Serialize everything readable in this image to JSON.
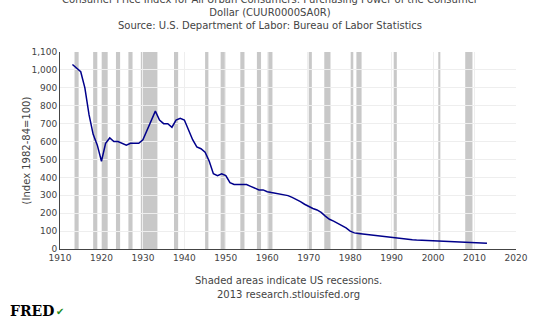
{
  "chart_data": {
    "type": "line",
    "title": [
      "Consumer Price Index for All Urban Consumers: Purchasing Power of the Consumer",
      "Dollar (CUUR0000SA0R)"
    ],
    "subtitle": "Source: U.S. Department of Labor: Bureau of Labor Statistics",
    "ylabel": "(Index 1982-84=100)",
    "annotations": [
      "Shaded areas indicate US recessions.",
      "2013 research.stlouisfed.org",
      "FRED",
      "✔"
    ],
    "color": "#00008b",
    "recession_color": "#c8c8c8",
    "recessions": [
      [
        1913.5,
        1914.5
      ],
      [
        1918.0,
        1919.0
      ],
      [
        1920.0,
        1921.5
      ],
      [
        1923.5,
        1924.5
      ],
      [
        1926.5,
        1927.5
      ],
      [
        1929.5,
        1933.5
      ],
      [
        1937.5,
        1938.5
      ],
      [
        1945.0,
        1945.8
      ],
      [
        1948.75,
        1949.75
      ],
      [
        1953.5,
        1954.5
      ],
      [
        1957.5,
        1958.5
      ],
      [
        1960.25,
        1961.25
      ],
      [
        1969.75,
        1970.75
      ],
      [
        1973.75,
        1975.25
      ],
      [
        1980.0,
        1980.75
      ],
      [
        1981.5,
        1982.75
      ],
      [
        1990.5,
        1991.25
      ],
      [
        2001.25,
        2001.75
      ],
      [
        2007.75,
        2009.5
      ]
    ],
    "x": [
      1913,
      1914,
      1915,
      1916,
      1917,
      1918,
      1919,
      1920,
      1921,
      1922,
      1923,
      1924,
      1925,
      1926,
      1927,
      1928,
      1929,
      1930,
      1931,
      1932,
      1933,
      1934,
      1935,
      1936,
      1937,
      1938,
      1939,
      1940,
      1941,
      1942,
      1943,
      1944,
      1945,
      1946,
      1947,
      1948,
      1949,
      1950,
      1951,
      1952,
      1953,
      1954,
      1955,
      1956,
      1957,
      1958,
      1959,
      1960,
      1961,
      1962,
      1963,
      1964,
      1965,
      1966,
      1967,
      1968,
      1969,
      1970,
      1971,
      1972,
      1973,
      1974,
      1975,
      1976,
      1977,
      1978,
      1979,
      1980,
      1981,
      1982,
      1983,
      1984,
      1985,
      1986,
      1987,
      1988,
      1989,
      1990,
      1991,
      1992,
      1993,
      1994,
      1995,
      1996,
      1997,
      1998,
      1999,
      2000,
      2001,
      2002,
      2003,
      2004,
      2005,
      2006,
      2007,
      2008,
      2009,
      2010,
      2011,
      2012,
      2013
    ],
    "values": [
      1030,
      1010,
      990,
      900,
      750,
      640,
      580,
      490,
      590,
      620,
      600,
      600,
      590,
      580,
      590,
      590,
      590,
      610,
      660,
      720,
      770,
      720,
      700,
      700,
      680,
      720,
      730,
      720,
      660,
      610,
      570,
      560,
      540,
      490,
      420,
      410,
      420,
      410,
      370,
      360,
      360,
      360,
      360,
      350,
      340,
      330,
      330,
      320,
      315,
      310,
      305,
      302,
      298,
      288,
      278,
      265,
      250,
      237,
      226,
      218,
      204,
      184,
      166,
      156,
      144,
      133,
      118,
      100,
      90,
      87,
      84,
      82,
      79,
      78,
      74,
      71,
      67,
      63,
      60,
      58,
      56,
      54,
      52,
      50,
      49,
      49,
      47,
      46,
      44,
      43,
      42,
      41,
      39,
      38,
      37,
      36,
      36,
      35,
      34,
      33,
      32
    ],
    "xlim": [
      1910,
      2020
    ],
    "ylim": [
      0,
      1100
    ],
    "xticks": [
      1910,
      1920,
      1930,
      1940,
      1950,
      1960,
      1970,
      1980,
      1990,
      2000,
      2010,
      2020
    ],
    "yticks": [
      0,
      100,
      200,
      300,
      400,
      500,
      600,
      700,
      800,
      900,
      {
        "value": 1000,
        "label": "1,000"
      },
      {
        "value": 1100,
        "label": "1,100"
      }
    ],
    "grid": true
  }
}
